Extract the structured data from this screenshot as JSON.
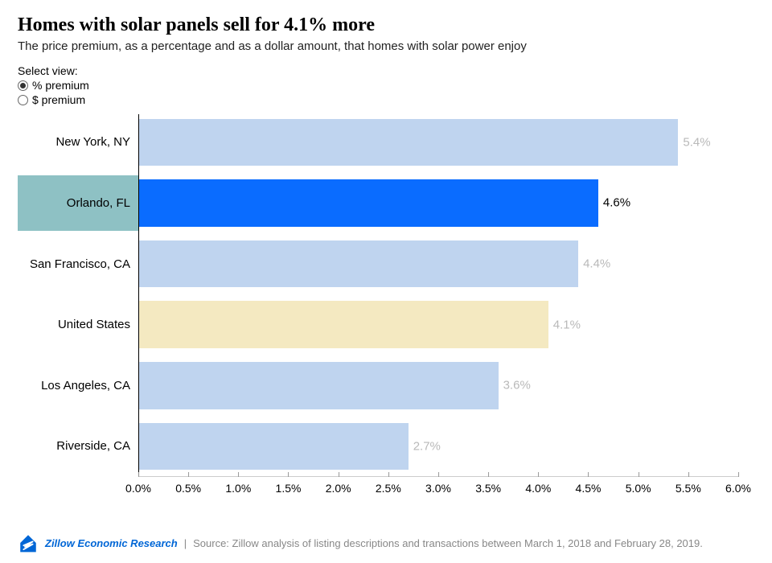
{
  "title": "Homes with solar panels sell for 4.1% more",
  "subtitle": "The price premium, as a percentage and as a dollar amount, that homes with solar power enjoy",
  "controls": {
    "label": "Select view:",
    "options": [
      {
        "label": "% premium",
        "selected": true
      },
      {
        "label": "$ premium",
        "selected": false
      }
    ]
  },
  "chart": {
    "type": "bar-horizontal",
    "xmin": 0.0,
    "xmax": 6.0,
    "xticks": [
      0.0,
      0.5,
      1.0,
      1.5,
      2.0,
      2.5,
      3.0,
      3.5,
      4.0,
      4.5,
      5.0,
      5.5,
      6.0
    ],
    "tick_format": "percent_one_decimal",
    "row_height_pct": 15.5,
    "row_gap_pct": 1.3,
    "background_color": "#ffffff",
    "baseline_color": "#000000",
    "default_bar_color": "#bfd4ef",
    "default_value_label_color": "#b9b9b9",
    "highlight_label_bg": "#8ec1c4",
    "categories": [
      {
        "label": "New York, NY",
        "value": 5.4,
        "bar_color": "#bfd4ef",
        "value_label_color": "#b9b9b9",
        "highlighted": false
      },
      {
        "label": "Orlando, FL",
        "value": 4.6,
        "bar_color": "#0a6cff",
        "value_label_color": "#000000",
        "highlighted": true
      },
      {
        "label": "San Francisco, CA",
        "value": 4.4,
        "bar_color": "#bfd4ef",
        "value_label_color": "#b9b9b9",
        "highlighted": false
      },
      {
        "label": "United States",
        "value": 4.1,
        "bar_color": "#f4e9c1",
        "value_label_color": "#b9b9b9",
        "highlighted": false
      },
      {
        "label": "Los Angeles, CA",
        "value": 3.6,
        "bar_color": "#bfd4ef",
        "value_label_color": "#b9b9b9",
        "highlighted": false
      },
      {
        "label": "Riverside, CA",
        "value": 2.7,
        "bar_color": "#bfd4ef",
        "value_label_color": "#b9b9b9",
        "highlighted": false
      }
    ]
  },
  "footer": {
    "brand": "Zillow Economic Research",
    "separator": "|",
    "source": "Source: Zillow analysis of listing descriptions and transactions between March 1, 2018 and February 28, 2019.",
    "logo_color": "#0066d6"
  }
}
